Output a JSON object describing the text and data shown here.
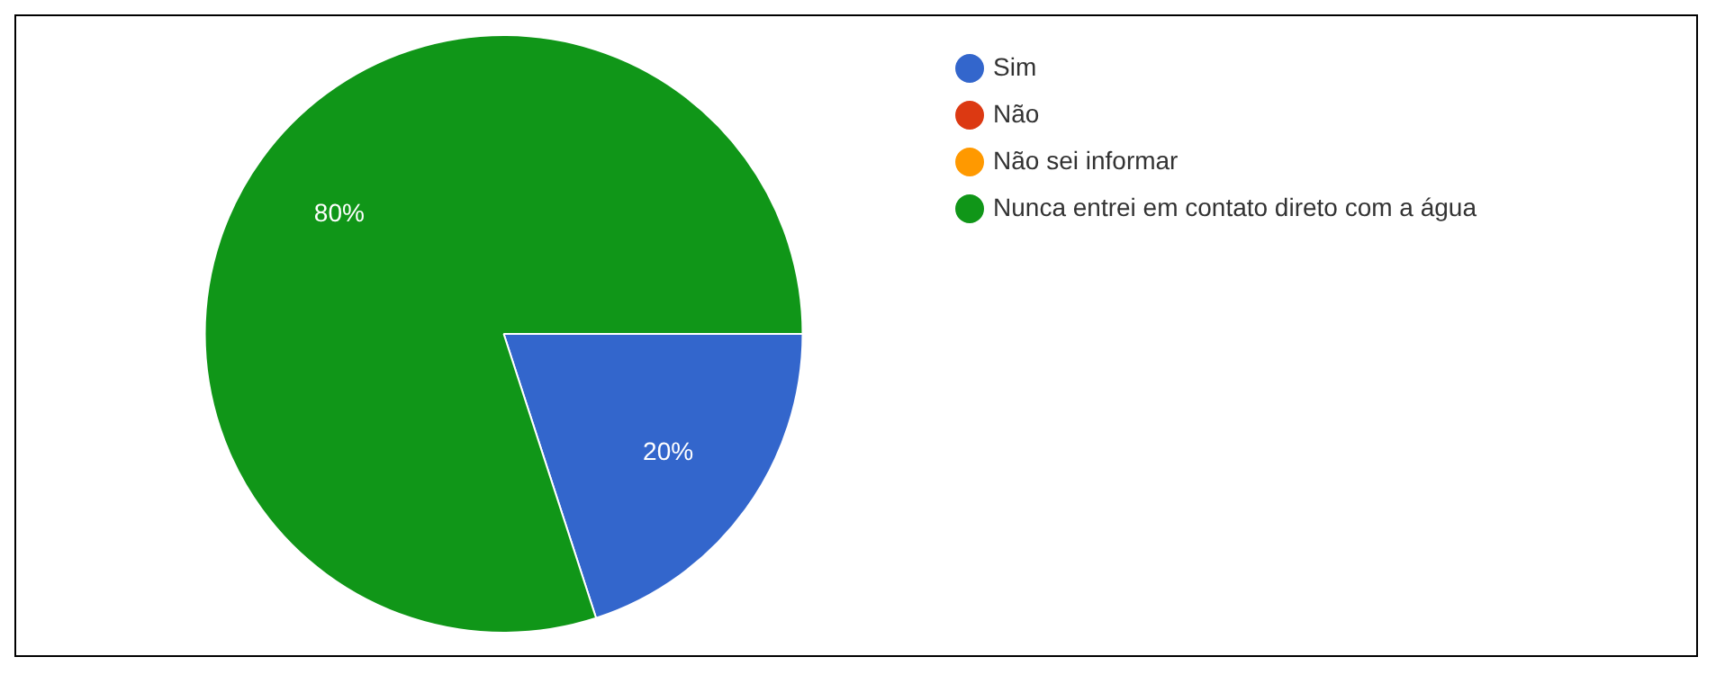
{
  "chart_data": {
    "type": "pie",
    "categories": [
      "Sim",
      "Não",
      "Não sei informar",
      "Nunca entrei em contato direto com a água"
    ],
    "values": [
      20,
      0,
      0,
      80
    ],
    "colors": [
      "#3366cc",
      "#dc3912",
      "#ff9900",
      "#109618"
    ],
    "value_labels": [
      "20%",
      null,
      null,
      "80%"
    ],
    "legend": "top right"
  }
}
